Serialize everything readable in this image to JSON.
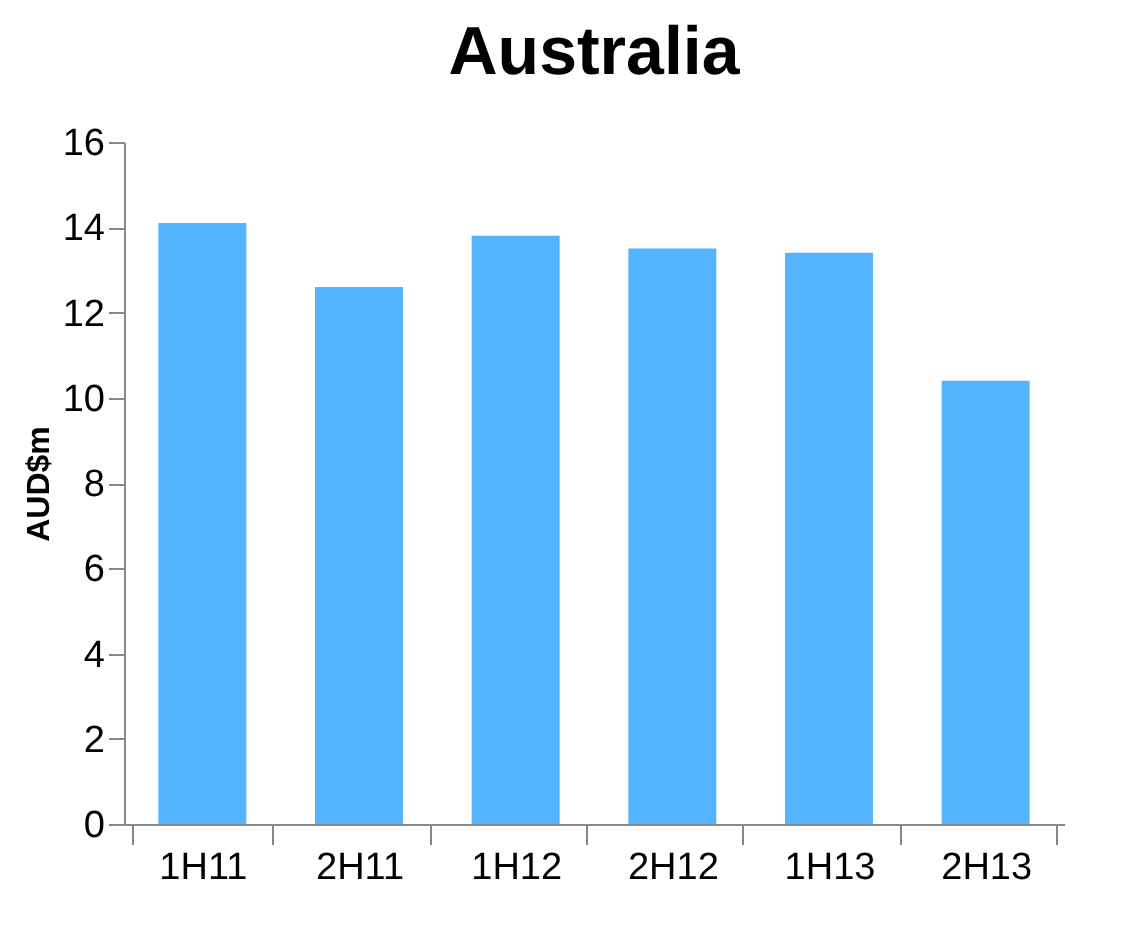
{
  "chart_data": {
    "type": "bar",
    "title": "Australia",
    "ylabel": "AUD$m",
    "categories": [
      "1H11",
      "2H11",
      "1H12",
      "2H12",
      "1H13",
      "2H13"
    ],
    "values": [
      14.1,
      12.6,
      13.8,
      13.5,
      13.4,
      10.4
    ],
    "color": "#55b4ff",
    "ylim": [
      0,
      16
    ],
    "yticks": [
      0,
      2,
      4,
      6,
      8,
      10,
      12,
      14,
      16
    ],
    "grid": false
  }
}
